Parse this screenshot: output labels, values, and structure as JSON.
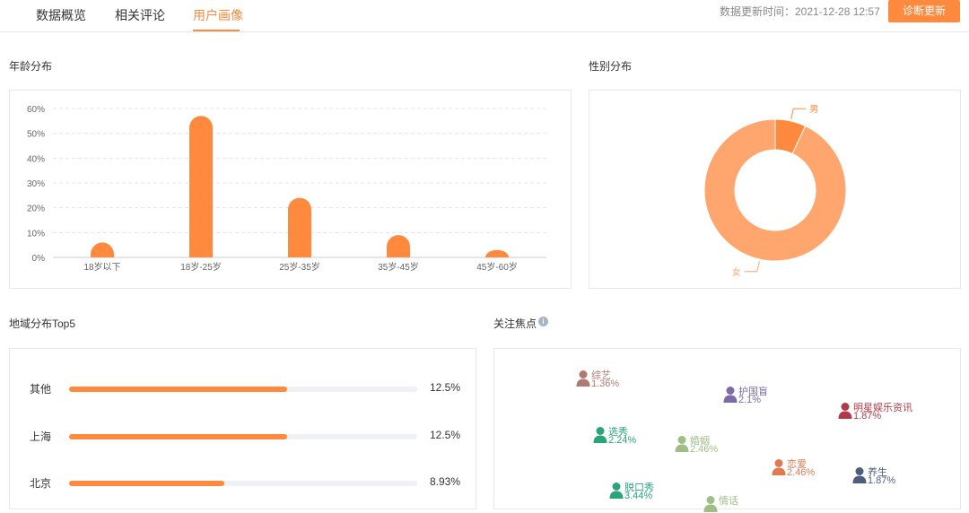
{
  "tabs": [
    {
      "label": "数据概览",
      "active": false
    },
    {
      "label": "相关评论",
      "active": false
    },
    {
      "label": "用户画像",
      "active": true
    }
  ],
  "header": {
    "update_time": "数据更新时间：2021-12-28 12:57",
    "diagnose_button": "诊断更新"
  },
  "sections": {
    "age": "年龄分布",
    "gender": "性别分布",
    "region": "地域分布Top5",
    "focus": "关注焦点"
  },
  "colors": {
    "accent": "#ff8a3d",
    "female": "#ffa66e",
    "male": "#ff8a3d"
  },
  "chart_data": [
    {
      "type": "bar",
      "title": "年龄分布",
      "categories": [
        "18岁以下",
        "18岁-25岁",
        "25岁-35岁",
        "35岁-45岁",
        "45岁-60岁"
      ],
      "values": [
        6,
        57,
        24,
        9,
        3
      ],
      "yticks": [
        "0%",
        "10%",
        "20%",
        "30%",
        "40%",
        "50%",
        "60%"
      ],
      "ylim": [
        0,
        60
      ],
      "grid": true
    },
    {
      "type": "pie",
      "title": "性别分布",
      "labels": [
        "男",
        "女"
      ],
      "values": [
        7,
        93
      ]
    }
  ],
  "regions": [
    {
      "label": "其他",
      "value": "12.5%",
      "fraction": 0.625
    },
    {
      "label": "上海",
      "value": "12.5%",
      "fraction": 0.625
    },
    {
      "label": "北京",
      "value": "8.93%",
      "fraction": 0.446
    }
  ],
  "focus_points": [
    {
      "name": "综艺",
      "pct": "1.36%",
      "color": "#b07a72"
    },
    {
      "name": "护国盲",
      "pct": "2.1%",
      "color": "#7e6aa8"
    },
    {
      "name": "明星娱乐资讯",
      "pct": "1.87%",
      "color": "#b23a48"
    },
    {
      "name": "选秀",
      "pct": "2.24%",
      "color": "#2aa57a"
    },
    {
      "name": "婚姻",
      "pct": "2.46%",
      "color": "#9fbe86"
    },
    {
      "name": "恋爱",
      "pct": "2.46%",
      "color": "#e07a52"
    },
    {
      "name": "养生",
      "pct": "1.87%",
      "color": "#4d5f7d"
    },
    {
      "name": "脱口秀",
      "pct": "3.44%",
      "color": "#2aa57a"
    },
    {
      "name": "情话",
      "pct": "",
      "color": "#9fbe86"
    }
  ]
}
